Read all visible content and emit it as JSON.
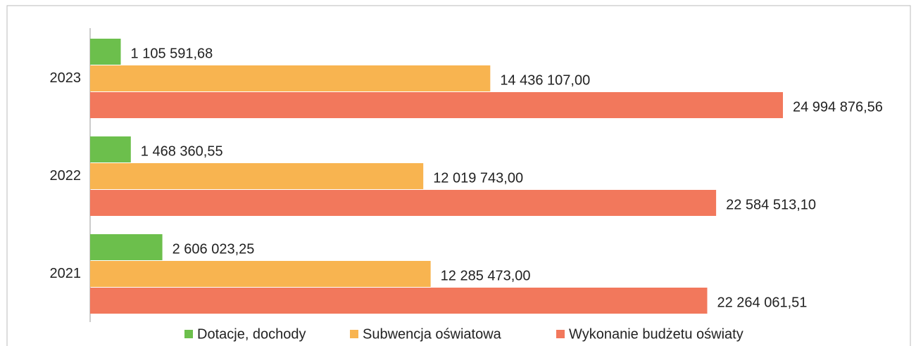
{
  "chart_data": {
    "type": "bar",
    "orientation": "horizontal",
    "categories": [
      "2023",
      "2022",
      "2021"
    ],
    "series": [
      {
        "name": "Dotacje, dochody",
        "color": "#6cbf4c",
        "values": [
          1105591.68,
          1468360.55,
          2606023.25
        ],
        "value_labels": [
          "1 105 591,68",
          "1 468 360,55",
          "2 606 023,25"
        ]
      },
      {
        "name": "Subwencja oświatowa",
        "color": "#f8b450",
        "values": [
          14436107.0,
          12019743.0,
          12285473.0
        ],
        "value_labels": [
          "14 436 107,00",
          "12 019 743,00",
          "12 285 473,00"
        ]
      },
      {
        "name": "Wykonanie budżetu oświaty",
        "color": "#f2785c",
        "values": [
          24994876.56,
          22584513.1,
          22264061.51
        ],
        "value_labels": [
          "24 994 876,56",
          "22 584 513,10",
          "22 264 061,51"
        ]
      }
    ],
    "legend": "bottom"
  }
}
